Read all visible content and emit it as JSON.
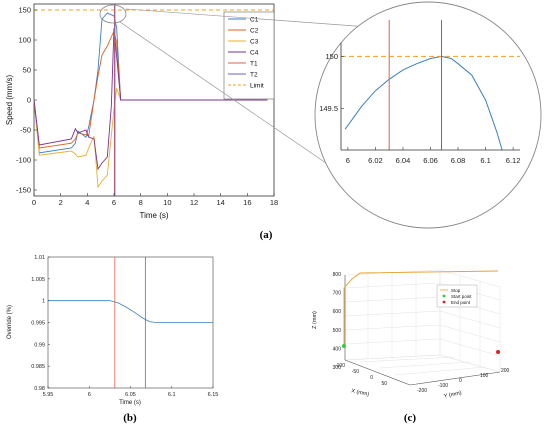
{
  "chart_data": [
    {
      "type": "line",
      "panel": "(a)",
      "xlabel": "Time (s)",
      "ylabel": "Speed (mm/s)",
      "xlim": [
        0,
        18
      ],
      "ylim": [
        -160,
        160
      ],
      "xticks": [
        0,
        2,
        4,
        6,
        8,
        10,
        12,
        14,
        16,
        18
      ],
      "yticks": [
        -150,
        -100,
        -50,
        0,
        50,
        100,
        150
      ],
      "legend_position": "top-right",
      "limit": {
        "name": "Limit",
        "value": 150,
        "color": "#f0a020"
      },
      "series": [
        {
          "name": "C1",
          "color": "#3a7fc4",
          "x": [
            0,
            0.4,
            2.8,
            3.1,
            3.3,
            3.9,
            4.1,
            4.5,
            4.8,
            5.1,
            5.5,
            6.0,
            6.2,
            6.5,
            17.5
          ],
          "y": [
            0,
            -88,
            -80,
            -72,
            -52,
            -62,
            -45,
            0,
            50,
            135,
            145,
            140,
            120,
            0,
            0
          ]
        },
        {
          "name": "C2",
          "color": "#e06020",
          "x": [
            0,
            0.4,
            2.8,
            3.1,
            3.3,
            3.9,
            4.1,
            4.5,
            4.8,
            5.1,
            5.5,
            6.0,
            6.2,
            6.5,
            17.5
          ],
          "y": [
            0,
            -80,
            -72,
            -65,
            -55,
            -58,
            -60,
            0,
            40,
            75,
            90,
            115,
            95,
            0,
            0
          ]
        },
        {
          "name": "C3",
          "color": "#e8b030",
          "x": [
            0,
            0.4,
            2.8,
            3.1,
            3.3,
            3.9,
            4.1,
            4.5,
            4.8,
            5.1,
            5.5,
            6.0,
            6.2,
            6.5,
            17.5
          ],
          "y": [
            0,
            -92,
            -85,
            -90,
            -95,
            -92,
            -80,
            -60,
            -145,
            -135,
            -125,
            -15,
            20,
            0,
            0
          ]
        },
        {
          "name": "C4",
          "color": "#7a3090",
          "x": [
            0,
            0.4,
            2.8,
            3.1,
            3.3,
            3.9,
            4.1,
            4.5,
            4.8,
            5.1,
            5.5,
            5.8,
            6.0,
            6.5,
            17.5
          ],
          "y": [
            0,
            -75,
            -65,
            -48,
            -55,
            -50,
            -62,
            -65,
            -115,
            -105,
            -95,
            -10,
            120,
            0,
            0
          ]
        },
        {
          "name": "T1",
          "color": "#e06050",
          "x": [
            6.03,
            6.03
          ],
          "y": [
            -160,
            160
          ]
        },
        {
          "name": "T2",
          "color": "#7060c0",
          "x": [
            6.07,
            6.07
          ],
          "y": [
            -160,
            160
          ]
        }
      ]
    },
    {
      "type": "line",
      "panel": "inset",
      "xlim": [
        5.995,
        6.125
      ],
      "ylim": [
        149.1,
        150.35
      ],
      "xticks": [
        6,
        6.02,
        6.04,
        6.06,
        6.08,
        6.1,
        6.12
      ],
      "xticklabels": [
        "6",
        "6.02",
        "6.04",
        "6.06",
        "6.08",
        "6.1",
        "6.12"
      ],
      "yticks": [
        149.5,
        150
      ],
      "series": [
        {
          "name": "C1",
          "color": "#3a7fc4",
          "x": [
            5.998,
            6.01,
            6.02,
            6.03,
            6.04,
            6.05,
            6.06,
            6.068,
            6.075,
            6.08,
            6.09,
            6.1,
            6.108,
            6.112
          ],
          "y": [
            149.3,
            149.52,
            149.67,
            149.78,
            149.87,
            149.93,
            149.98,
            150.0,
            149.98,
            149.93,
            149.82,
            149.58,
            149.28,
            149.1
          ]
        },
        {
          "name": "Limit",
          "color": "#f0a020",
          "x": [
            5.995,
            6.125
          ],
          "y": [
            150,
            150
          ]
        },
        {
          "name": "T1",
          "color": "#e06050",
          "x": [
            6.03,
            6.03
          ],
          "y": [
            149.1,
            150.35
          ]
        },
        {
          "name": "T2",
          "color": "#7060c0",
          "x": [
            6.068,
            6.068
          ],
          "y": [
            149.1,
            150.35
          ]
        }
      ]
    },
    {
      "type": "line",
      "panel": "(b)",
      "xlabel": "Time (s)",
      "ylabel": "Override (%)",
      "xlim": [
        5.95,
        6.15
      ],
      "ylim": [
        0.98,
        1.01
      ],
      "xticks": [
        5.95,
        6,
        6.05,
        6.1,
        6.15
      ],
      "xticklabels": [
        "5.95",
        "6",
        "6.05",
        "6.1",
        "6.15"
      ],
      "yticks": [
        0.98,
        0.985,
        0.99,
        0.995,
        1,
        1.005,
        1.01
      ],
      "yticklabels": [
        "0.98",
        "0.985",
        "0.99",
        "0.995",
        "1",
        "1.005",
        "1.01"
      ],
      "series": [
        {
          "name": "Override",
          "color": "#3a7fc4",
          "x": [
            5.95,
            6.025,
            6.035,
            6.045,
            6.055,
            6.065,
            6.073,
            6.08,
            6.15
          ],
          "y": [
            1.0,
            1.0,
            0.9995,
            0.9985,
            0.9973,
            0.996,
            0.9952,
            0.995,
            0.995
          ]
        },
        {
          "name": "T1",
          "color": "#e06050",
          "x": [
            6.031,
            6.031
          ],
          "y": [
            0.98,
            1.01
          ]
        },
        {
          "name": "T2",
          "color": "#7060c0",
          "x": [
            6.068,
            6.068
          ],
          "y": [
            0.98,
            1.01
          ]
        }
      ]
    },
    {
      "type": "line3d",
      "panel": "(c)",
      "xlabel": "X (mm)",
      "ylabel": "Y (mm)",
      "zlabel": "Z (mm)",
      "zticks": [
        300,
        400,
        500,
        600,
        700,
        800
      ],
      "xticks": [
        -100,
        -50,
        0,
        50
      ],
      "yticks": [
        -200,
        -100,
        0,
        100,
        200
      ],
      "legend": [
        "Stop",
        "Start point",
        "End point"
      ],
      "series": [
        {
          "name": "Stop",
          "color": "#e8a030"
        },
        {
          "name": "Start point",
          "color": "#2ecc40"
        },
        {
          "name": "End point",
          "color": "#e02020"
        }
      ]
    }
  ],
  "captions": {
    "a": "(a)",
    "b": "(b)",
    "c": "(c)"
  }
}
